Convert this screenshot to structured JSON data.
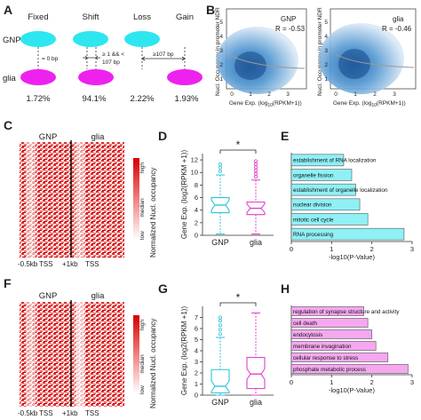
{
  "panel_labels": {
    "a": "A",
    "b": "B",
    "c": "C",
    "d": "D",
    "e": "E",
    "f": "F",
    "g": "G",
    "h": "H"
  },
  "panel_a": {
    "columns": [
      "Fixed",
      "Shift",
      "Loss",
      "Gain"
    ],
    "row_top": "GNP",
    "row_bottom": "glia",
    "fixed_note": "= 0 bp",
    "shift_note_line1": "≥ 1 && <",
    "shift_note_line2": "107 bp",
    "gain_note": "≥107 bp",
    "percentages": [
      "1.72%",
      "94.1%",
      "2.22%",
      "1.93%"
    ],
    "colors": {
      "gnp": "#2ee6f0",
      "glia": "#ee22ee"
    }
  },
  "panel_b": {
    "ylabel": "Nucl. Occupancy in promoter NDR",
    "xlabel_prefix": "Gene Exp. (log",
    "xlabel_sub": "10",
    "xlabel_suffix": "(RPKM+1))",
    "plots": [
      {
        "name": "GNP",
        "r": "R = -0.53"
      },
      {
        "name": "glia",
        "r": "R = -0.46"
      }
    ],
    "x_ticks": [
      "0",
      "1",
      "2",
      "3"
    ],
    "y_ticks": [
      "1",
      "2",
      "3",
      "4",
      "5"
    ]
  },
  "heatmap_c": {
    "col_labels": [
      "GNP",
      "glia"
    ],
    "x_labels": [
      "-0.5kb",
      "TSS",
      "+1kb",
      "TSS"
    ],
    "legend_title": "Normalized Nucl. occupancy",
    "legend_ticks": [
      "high",
      "median",
      "low"
    ]
  },
  "heatmap_f": {
    "col_labels": [
      "GNP",
      "glia"
    ],
    "x_labels": [
      "-0.5kb",
      "TSS",
      "+1kb",
      "TSS"
    ],
    "legend_title": "Normalized Nucl. occupancy",
    "legend_ticks": [
      "high",
      "median",
      "low"
    ]
  },
  "chart_data": [
    {
      "id": "D",
      "type": "box",
      "categories": [
        "GNP",
        "glia"
      ],
      "ylabel": "Gene Exp. (log2(RPKM +1))",
      "ylim": [
        0,
        13
      ],
      "yticks": [
        0,
        2,
        4,
        6,
        8,
        10,
        12
      ],
      "significance": "*",
      "series": [
        {
          "name": "GNP",
          "color": "#2ec4d8",
          "q1": 3.6,
          "median": 4.8,
          "q3": 6.0,
          "whisker_low": 0.2,
          "whisker_high": 9.6,
          "outliers": [
            10.2,
            10.8,
            11.3
          ]
        },
        {
          "name": "glia",
          "color": "#e040c8",
          "q1": 3.3,
          "median": 4.3,
          "q3": 5.3,
          "whisker_low": 0.2,
          "whisker_high": 8.8,
          "outliers": [
            9.3,
            9.8,
            10.3,
            10.8,
            11.3,
            11.8
          ]
        }
      ]
    },
    {
      "id": "E",
      "type": "bar",
      "orientation": "horizontal",
      "color": "#8ff0f5",
      "categories": [
        "establishment of RNA localization",
        "organelle fission",
        "establishment of organelle localization",
        "nuclear division",
        "mitotic cell cycle",
        "RNA processing"
      ],
      "values": [
        1.3,
        1.5,
        1.6,
        1.7,
        1.9,
        2.8
      ],
      "xlabel": "-log10(P-Value)",
      "xlim": [
        0,
        3
      ],
      "xticks": [
        0,
        1,
        2,
        3
      ]
    },
    {
      "id": "G",
      "type": "box",
      "categories": [
        "GNP",
        "glia"
      ],
      "ylabel": "Gene Exp. (log2(RPKM +1))",
      "ylim": [
        0,
        8
      ],
      "yticks": [
        0,
        1,
        2,
        3,
        4,
        5,
        6,
        7
      ],
      "significance": "*",
      "series": [
        {
          "name": "GNP",
          "color": "#2ec4d8",
          "q1": 0.2,
          "median": 0.8,
          "q3": 2.3,
          "whisker_low": 0,
          "whisker_high": 5.2,
          "outliers": [
            5.5,
            5.9,
            6.3,
            6.7,
            7.0
          ]
        },
        {
          "name": "glia",
          "color": "#e040c8",
          "q1": 0.6,
          "median": 1.9,
          "q3": 3.4,
          "whisker_low": 0,
          "whisker_high": 7.4,
          "outliers": []
        }
      ]
    },
    {
      "id": "H",
      "type": "bar",
      "orientation": "horizontal",
      "color": "#f5a8f0",
      "categories": [
        "regulation of synapse structure and activity",
        "cell death",
        "endocytosis",
        "membrane invagination",
        "cellular response to stress",
        "phosphate metabolic process"
      ],
      "values": [
        1.8,
        1.9,
        2.0,
        2.1,
        2.4,
        2.9
      ],
      "xlabel": "-log10(P-Value)",
      "xlim": [
        0,
        3
      ],
      "xticks": [
        0,
        1,
        2,
        3
      ]
    }
  ]
}
